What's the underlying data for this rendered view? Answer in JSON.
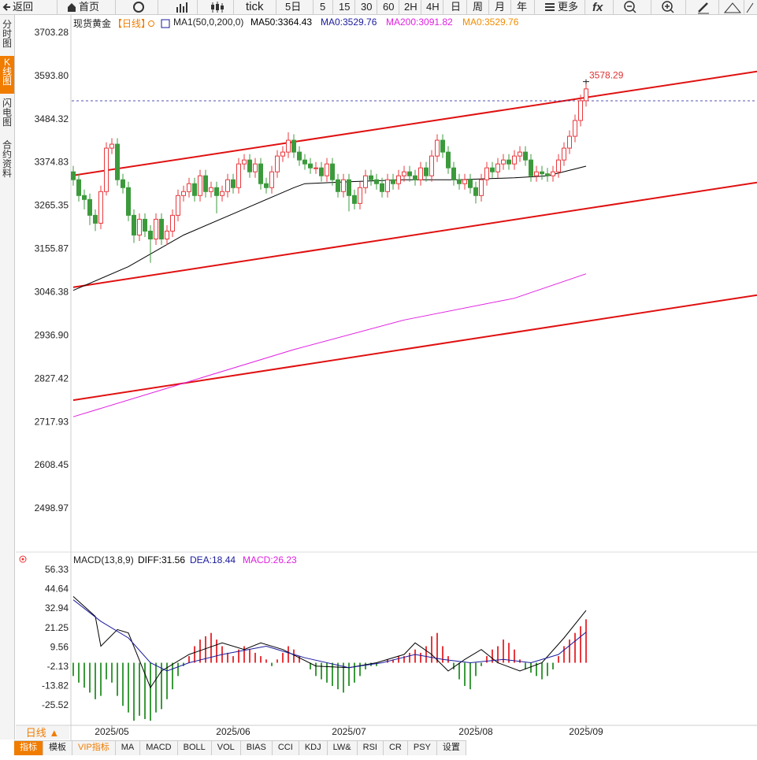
{
  "toolbar": {
    "items": [
      "返回",
      "首页",
      "tick",
      "5日",
      "5",
      "15",
      "30",
      "60",
      "2H",
      "4H",
      "日",
      "周",
      "月",
      "年",
      "更多"
    ]
  },
  "sidebar": {
    "tabs": [
      "分时图",
      "K线图",
      "闪电图",
      "合约资料"
    ]
  },
  "bottom_bar": {
    "period": "日线 ▲",
    "tabs": [
      "指标",
      "模板",
      "VIP指标",
      "MA",
      "MACD",
      "BOLL",
      "VOL",
      "BIAS",
      "CCI",
      "KDJ",
      "LW&",
      "RSI",
      "CR",
      "PSY",
      "设置"
    ]
  },
  "chart_data": [
    {
      "type": "candlestick",
      "title": "现货黄金",
      "subtitle": "【日线】",
      "indicator": "MA1(50,0,200,0)",
      "up_color": "#e8383d",
      "down_color": "#3c9a3c",
      "open": [
        3350,
        3330,
        3290,
        3280,
        3240,
        3220,
        3300,
        3410,
        3420,
        3330,
        3310,
        3240,
        3190,
        3230,
        3200,
        3180,
        3230,
        3180,
        3200,
        3240,
        3290,
        3300,
        3320,
        3290,
        3340,
        3300,
        3310,
        3290,
        3300,
        3330,
        3310,
        3370,
        3380,
        3350,
        3370,
        3320,
        3310,
        3350,
        3390,
        3400,
        3430,
        3400,
        3380,
        3370,
        3360,
        3360,
        3340,
        3370,
        3330,
        3300,
        3330,
        3290,
        3270,
        3310,
        3340,
        3330,
        3320,
        3300,
        3330,
        3320,
        3340,
        3350,
        3340,
        3330,
        3360,
        3340,
        3390,
        3430,
        3400,
        3360,
        3330,
        3320,
        3330,
        3310,
        3290,
        3330,
        3360,
        3350,
        3370,
        3380,
        3370,
        3390,
        3400,
        3380,
        3340,
        3350,
        3345,
        3340,
        3350,
        3380,
        3410,
        3440,
        3480,
        3530
      ],
      "close": [
        3330,
        3290,
        3280,
        3240,
        3220,
        3300,
        3410,
        3420,
        3330,
        3310,
        3240,
        3190,
        3230,
        3200,
        3180,
        3230,
        3180,
        3200,
        3240,
        3290,
        3300,
        3320,
        3290,
        3340,
        3300,
        3310,
        3290,
        3300,
        3330,
        3310,
        3370,
        3380,
        3350,
        3370,
        3320,
        3310,
        3350,
        3390,
        3400,
        3430,
        3400,
        3380,
        3370,
        3360,
        3360,
        3340,
        3370,
        3330,
        3300,
        3330,
        3290,
        3270,
        3310,
        3340,
        3330,
        3320,
        3300,
        3330,
        3320,
        3340,
        3350,
        3340,
        3330,
        3360,
        3340,
        3390,
        3430,
        3400,
        3360,
        3330,
        3320,
        3330,
        3310,
        3290,
        3330,
        3360,
        3350,
        3370,
        3380,
        3370,
        3390,
        3400,
        3380,
        3340,
        3350,
        3345,
        3340,
        3350,
        3380,
        3410,
        3440,
        3480,
        3530,
        3560
      ],
      "high": [
        3365,
        3345,
        3305,
        3295,
        3255,
        3315,
        3425,
        3435,
        3435,
        3345,
        3325,
        3255,
        3245,
        3245,
        3215,
        3245,
        3245,
        3215,
        3255,
        3305,
        3315,
        3335,
        3335,
        3355,
        3355,
        3325,
        3325,
        3315,
        3345,
        3345,
        3385,
        3395,
        3395,
        3385,
        3385,
        3335,
        3365,
        3405,
        3415,
        3450,
        3445,
        3415,
        3395,
        3385,
        3375,
        3375,
        3385,
        3385,
        3345,
        3345,
        3345,
        3305,
        3325,
        3355,
        3355,
        3345,
        3335,
        3345,
        3345,
        3355,
        3365,
        3365,
        3355,
        3375,
        3375,
        3405,
        3445,
        3445,
        3415,
        3375,
        3345,
        3345,
        3345,
        3325,
        3345,
        3375,
        3375,
        3385,
        3395,
        3395,
        3405,
        3415,
        3415,
        3395,
        3365,
        3365,
        3360,
        3365,
        3395,
        3425,
        3455,
        3495,
        3545,
        3578.29
      ],
      "low": [
        3315,
        3275,
        3255,
        3215,
        3200,
        3205,
        3290,
        3395,
        3315,
        3295,
        3225,
        3170,
        3175,
        3185,
        3120,
        3165,
        3165,
        3165,
        3185,
        3225,
        3275,
        3285,
        3275,
        3275,
        3285,
        3285,
        3245,
        3275,
        3285,
        3295,
        3295,
        3355,
        3335,
        3335,
        3305,
        3295,
        3295,
        3335,
        3375,
        3385,
        3385,
        3365,
        3355,
        3345,
        3345,
        3325,
        3325,
        3315,
        3285,
        3285,
        3250,
        3255,
        3255,
        3295,
        3315,
        3305,
        3285,
        3285,
        3305,
        3305,
        3325,
        3325,
        3315,
        3315,
        3325,
        3325,
        3375,
        3385,
        3345,
        3315,
        3305,
        3305,
        3295,
        3270,
        3275,
        3315,
        3335,
        3335,
        3355,
        3355,
        3355,
        3375,
        3365,
        3325,
        3325,
        3330,
        3325,
        3325,
        3335,
        3365,
        3395,
        3425,
        3465,
        3515
      ],
      "max_high_label": "3578.29",
      "series": [
        {
          "name": "MA50:3364.43",
          "color": "#000000",
          "x": [
            0,
            10,
            20,
            30,
            40,
            42,
            50,
            60,
            70,
            80,
            86,
            93
          ],
          "values": [
            3050,
            3110,
            3190,
            3250,
            3310,
            3320,
            3325,
            3330,
            3330,
            3335,
            3340,
            3364.43
          ]
        },
        {
          "name": "MA200:3091.82",
          "color": "#e020e0",
          "x": [
            0,
            20,
            40,
            60,
            80,
            93
          ],
          "values": [
            2730,
            2815,
            2900,
            2975,
            3030,
            3091.82
          ]
        }
      ],
      "ref_line": {
        "name": "MA0:3529.76",
        "color": "#1a1a9c",
        "value": 3529.76
      },
      "extra_legend": {
        "name": "MA0:3529.76",
        "color": "#f08c00"
      },
      "trendlines": {
        "color": "#e01010",
        "lines": [
          {
            "x": [
              0,
              124
            ],
            "values": [
              3341,
              3604
            ]
          },
          {
            "x": [
              0,
              124
            ],
            "values": [
              3058,
              3323
            ]
          },
          {
            "x": [
              0,
              124
            ],
            "values": [
              2772,
              3038
            ]
          }
        ]
      },
      "ylim": [
        2389.5,
        3747.1
      ],
      "yticks": [
        3703.28,
        {
          "value": 3593.8,
          "label": "3593.80"
        },
        3484.32,
        3374.83,
        3265.35,
        3155.87,
        3046.38,
        {
          "value": 2936.9,
          "label": "2936.90"
        },
        2827.42,
        2717.93,
        2608.45,
        2498.97
      ]
    },
    {
      "type": "macd",
      "title": "MACD(13,8,9)",
      "categories": [
        null,
        null,
        null,
        null,
        null,
        null,
        null,
        "2025/05",
        null,
        null,
        null,
        null,
        null,
        null,
        null,
        null,
        null,
        null,
        null,
        null,
        null,
        null,
        null,
        null,
        null,
        null,
        null,
        null,
        null,
        "2025/06",
        null,
        null,
        null,
        null,
        null,
        null,
        null,
        null,
        null,
        null,
        null,
        null,
        null,
        null,
        null,
        null,
        null,
        null,
        null,
        null,
        "2025/07",
        null,
        null,
        null,
        null,
        null,
        null,
        null,
        null,
        null,
        null,
        null,
        null,
        null,
        null,
        null,
        null,
        null,
        null,
        null,
        null,
        null,
        null,
        "2025/08",
        null,
        null,
        null,
        null,
        null,
        null,
        null,
        null,
        null,
        null,
        null,
        null,
        null,
        null,
        null,
        null,
        null,
        null,
        null,
        "2025/09"
      ],
      "histogram": {
        "name": "MACD:26.23",
        "color": "#e020e0",
        "up_color": "#e8383d",
        "down_color": "#3c9a3c",
        "values": [
          -8,
          -12,
          -15,
          -18,
          -22,
          -20,
          -10,
          -12,
          -20,
          -26,
          -30,
          -35,
          -32,
          -34,
          -35,
          -30,
          -28,
          -22,
          -16,
          -8,
          -2,
          4,
          10,
          14,
          16,
          18,
          14,
          10,
          6,
          4,
          8,
          10,
          8,
          6,
          4,
          2,
          -2,
          2,
          6,
          10,
          8,
          4,
          0,
          -4,
          -8,
          -10,
          -12,
          -14,
          -16,
          -18,
          -14,
          -12,
          -8,
          -4,
          -2,
          -2,
          0,
          2,
          2,
          4,
          4,
          6,
          8,
          6,
          10,
          16,
          18,
          10,
          4,
          -4,
          -10,
          -14,
          -16,
          -8,
          -2,
          4,
          8,
          10,
          14,
          12,
          8,
          2,
          -4,
          -6,
          -8,
          -10,
          -8,
          -4,
          4,
          10,
          14,
          18,
          22,
          26.23
        ]
      },
      "series": [
        {
          "name": "DIFF:31.56",
          "color": "#000000",
          "x": [
            0,
            4,
            5,
            8,
            10,
            14,
            16,
            21,
            27,
            31,
            34,
            38,
            44,
            50,
            55,
            60,
            62,
            65,
            68,
            71,
            74,
            77,
            81,
            85,
            89,
            93
          ],
          "values": [
            40,
            28,
            10,
            20,
            18,
            -15,
            -5,
            5,
            12,
            8,
            12,
            8,
            -2,
            -3,
            0,
            5,
            12,
            5,
            -5,
            2,
            8,
            0,
            -5,
            0,
            15,
            31.56
          ]
        },
        {
          "name": "DEA:18.44",
          "color": "#1a1a9c",
          "x": [
            0,
            5,
            10,
            14,
            17,
            21,
            27,
            35,
            42,
            50,
            56,
            62,
            67,
            72,
            78,
            83,
            88,
            93
          ],
          "values": [
            38,
            25,
            15,
            0,
            -5,
            0,
            5,
            10,
            3,
            -3,
            0,
            5,
            2,
            0,
            2,
            0,
            5,
            18.44
          ]
        }
      ],
      "ylim": [
        -37.3,
        65.84
      ],
      "yticks": [
        56.33,
        44.64,
        32.94,
        21.25,
        9.56,
        -2.13,
        -13.82,
        -25.52
      ]
    }
  ]
}
